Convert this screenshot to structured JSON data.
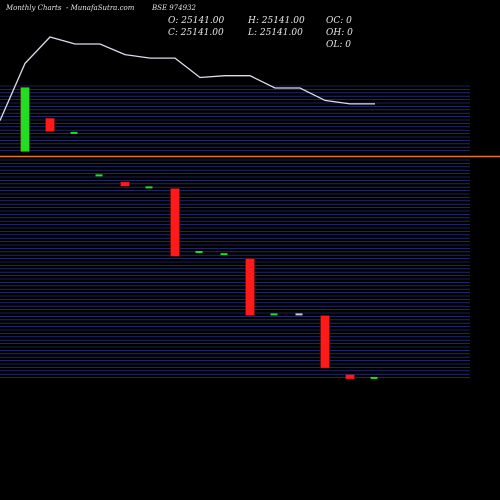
{
  "header": {
    "title": "Monthly Charts",
    "source": "MunafaSutra.com",
    "symbol": "BSE 974932"
  },
  "ohlc": {
    "open_label": "O: 25141.00",
    "close_label": "C: 25141.00",
    "high_label": "H: 25141.00",
    "low_label": "L: 25141.00",
    "oc_label": "OC: 0",
    "oh_label": "OH: 0",
    "ol_label": "OL: 0"
  },
  "colors": {
    "background": "#000000",
    "gridline": "#2f3da8",
    "separator": "#e07820",
    "bullish": "#22dd22",
    "bearish": "#ff1a1a",
    "doji_neutral": "#c8c8c8",
    "line": "#dcdcec"
  },
  "chart_data": [
    {
      "type": "line",
      "description_of_series": "price trend line",
      "x_index": [
        0,
        1,
        2,
        3,
        4,
        5,
        6,
        7,
        8,
        9,
        10,
        11,
        12,
        13,
        14
      ],
      "values": [
        0.7,
        1.0,
        0.92,
        0.92,
        0.8,
        0.76,
        0.76,
        0.54,
        0.56,
        0.56,
        0.42,
        0.42,
        0.28,
        0.24,
        0.24
      ],
      "y_unit": "relative (no axis values legible)"
    },
    {
      "type": "candlestick",
      "panel": "upper",
      "candles": [
        {
          "i": 0,
          "dir": "up",
          "top": 0.98,
          "bottom": 0.02
        },
        {
          "i": 1,
          "dir": "down",
          "top": 0.52,
          "bottom": 0.32
        },
        {
          "i": 2,
          "dir": "flat_up",
          "top": 0.3,
          "bottom": 0.3
        }
      ]
    },
    {
      "type": "candlestick",
      "panel": "lower",
      "candles": [
        {
          "i": 3,
          "dir": "flat_up",
          "top": 0.93,
          "bottom": 0.93
        },
        {
          "i": 4,
          "dir": "down",
          "top": 0.9,
          "bottom": 0.88
        },
        {
          "i": 5,
          "dir": "flat_up",
          "top": 0.875,
          "bottom": 0.875
        },
        {
          "i": 6,
          "dir": "down",
          "top": 0.87,
          "bottom": 0.56
        },
        {
          "i": 7,
          "dir": "flat_up",
          "top": 0.58,
          "bottom": 0.58
        },
        {
          "i": 8,
          "dir": "flat_up",
          "top": 0.57,
          "bottom": 0.57
        },
        {
          "i": 9,
          "dir": "down",
          "top": 0.55,
          "bottom": 0.29
        },
        {
          "i": 10,
          "dir": "flat_up",
          "top": 0.295,
          "bottom": 0.29
        },
        {
          "i": 11,
          "dir": "flat_down",
          "top": 0.295,
          "bottom": 0.295
        },
        {
          "i": 12,
          "dir": "down",
          "top": 0.29,
          "bottom": 0.05
        },
        {
          "i": 13,
          "dir": "down",
          "top": 0.02,
          "bottom": 0.0
        },
        {
          "i": 14,
          "dir": "flat_up",
          "top": 0.005,
          "bottom": 0.005
        }
      ]
    }
  ]
}
